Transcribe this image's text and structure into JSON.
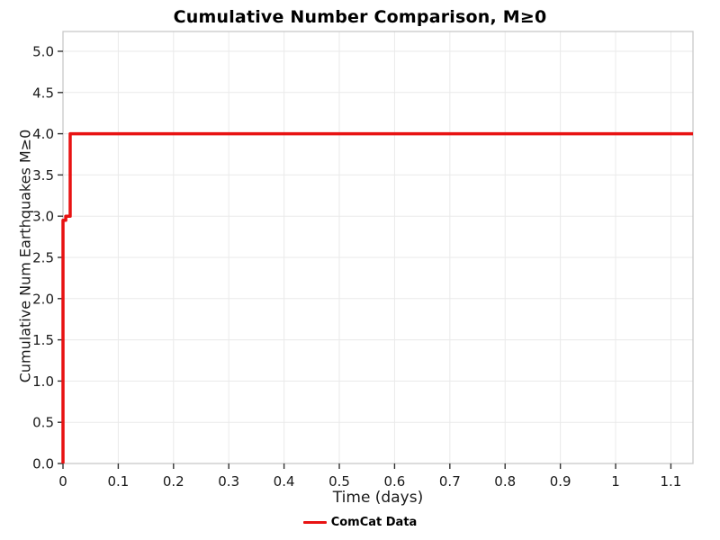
{
  "chart_data": {
    "type": "line",
    "title": "Cumulative Number Comparison, M≥0",
    "xlabel": "Time (days)",
    "ylabel": "Cumulative Num Earthquakes M≥0",
    "xlim": [
      0,
      1.14
    ],
    "ylim": [
      0,
      5.24
    ],
    "grid": true,
    "xtick_values": [
      0,
      0.1,
      0.2,
      0.3,
      0.4,
      0.5,
      0.6,
      0.7,
      0.8,
      0.9,
      1,
      1.1
    ],
    "xtick_labels": [
      "0",
      "0.1",
      "0.2",
      "0.3",
      "0.4",
      "0.5",
      "0.6",
      "0.7",
      "0.8",
      "0.9",
      "1",
      "1.1"
    ],
    "ytick_values": [
      0,
      0.5,
      1,
      1.5,
      2,
      2.5,
      3,
      3.5,
      4,
      4.5,
      5
    ],
    "ytick_labels": [
      "0.0",
      "0.5",
      "1.0",
      "1.5",
      "2.0",
      "2.5",
      "3.0",
      "3.5",
      "4.0",
      "4.5",
      "5.0"
    ],
    "legend": {
      "position": "bottom",
      "entries": [
        {
          "label": "ComCat Data",
          "color": "#e81212"
        }
      ]
    },
    "series": [
      {
        "name": "ComCat Data",
        "color": "#e81212",
        "x": [
          0,
          0,
          0.005,
          0.005,
          0.013,
          0.013,
          1.14
        ],
        "y": [
          0,
          2.95,
          2.95,
          3.0,
          3.0,
          4.0,
          4.0
        ]
      }
    ],
    "colors": {
      "line": "#e81212",
      "grid": "#eaeaea",
      "border": "#c8c8c8",
      "tick": "#333333",
      "text": "#1a1a1a"
    }
  }
}
